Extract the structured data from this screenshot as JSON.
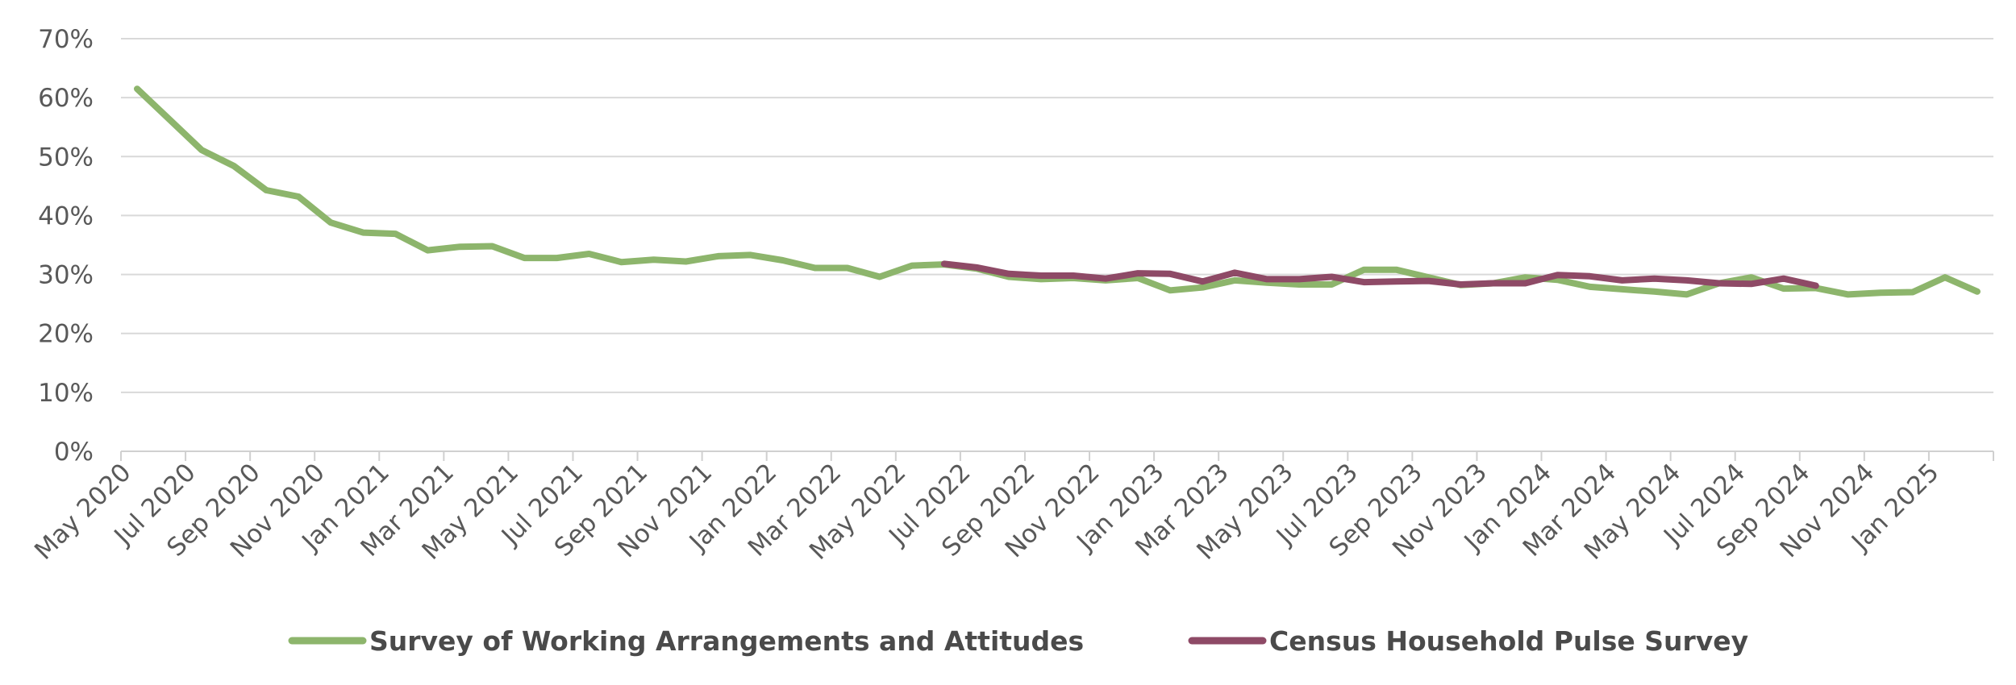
{
  "chart_data": {
    "type": "line",
    "title": "",
    "xlabel": "",
    "ylabel": "",
    "ylim": [
      0,
      70
    ],
    "y_ticks": [
      0,
      10,
      20,
      30,
      40,
      50,
      60,
      70
    ],
    "y_tick_labels": [
      "0%",
      "10%",
      "20%",
      "30%",
      "40%",
      "50%",
      "60%",
      "70%"
    ],
    "grid": true,
    "legend_position": "bottom",
    "x_tick_labels": [
      "May 2020",
      "Jul 2020",
      "Sep 2020",
      "Nov 2020",
      "Jan 2021",
      "Mar 2021",
      "May 2021",
      "Jul 2021",
      "Sep 2021",
      "Nov 2021",
      "Jan 2022",
      "Mar 2022",
      "May 2022",
      "Jul 2022",
      "Sep 2022",
      "Nov 2022",
      "Jan 2023",
      "Mar 2023",
      "May 2023",
      "Jul 2023",
      "Sep 2023",
      "Nov 2023",
      "Jan 2024",
      "Mar 2024",
      "May 2024",
      "Jul 2024",
      "Sep 2024",
      "Nov 2024",
      "Jan 2025"
    ],
    "x_tick_month_index": [
      0,
      2,
      4,
      6,
      8,
      10,
      12,
      14,
      16,
      18,
      20,
      22,
      24,
      26,
      28,
      30,
      32,
      34,
      36,
      38,
      40,
      42,
      44,
      46,
      48,
      50,
      52,
      54,
      56
    ],
    "x_month_range": [
      0,
      58
    ],
    "series": [
      {
        "name": "Survey of Working Arrangements and Attitudes",
        "color": "#8db56c",
        "start_month_index": 0.5,
        "values": [
          61.5,
          56.3,
          51.1,
          48.4,
          44.3,
          43.2,
          38.8,
          37.1,
          36.9,
          34.1,
          34.7,
          34.8,
          32.8,
          32.8,
          33.5,
          32.1,
          32.5,
          32.2,
          33.1,
          33.3,
          32.4,
          31.1,
          31.1,
          29.6,
          31.5,
          31.7,
          31.0,
          29.6,
          29.2,
          29.4,
          29.0,
          29.4,
          27.3,
          27.8,
          29.0,
          28.6,
          28.3,
          28.3,
          30.8,
          30.8,
          29.5,
          28.2,
          28.5,
          29.5,
          29.1,
          27.9,
          27.5,
          27.1,
          26.6,
          28.5,
          29.5,
          27.6,
          27.7,
          26.6,
          26.9,
          27.0,
          29.5,
          27.1
        ]
      },
      {
        "name": "Census Household Pulse Survey",
        "color": "#8e4a66",
        "start_month_index": 25.5,
        "values": [
          31.8,
          31.2,
          30.1,
          29.8,
          29.8,
          29.3,
          30.2,
          30.1,
          28.8,
          30.3,
          29.2,
          29.2,
          29.6,
          28.7,
          28.8,
          28.9,
          28.3,
          28.5,
          28.5,
          29.9,
          29.7,
          29.0,
          29.3,
          29.0,
          28.5,
          28.4,
          29.3,
          28.1
        ]
      }
    ]
  }
}
